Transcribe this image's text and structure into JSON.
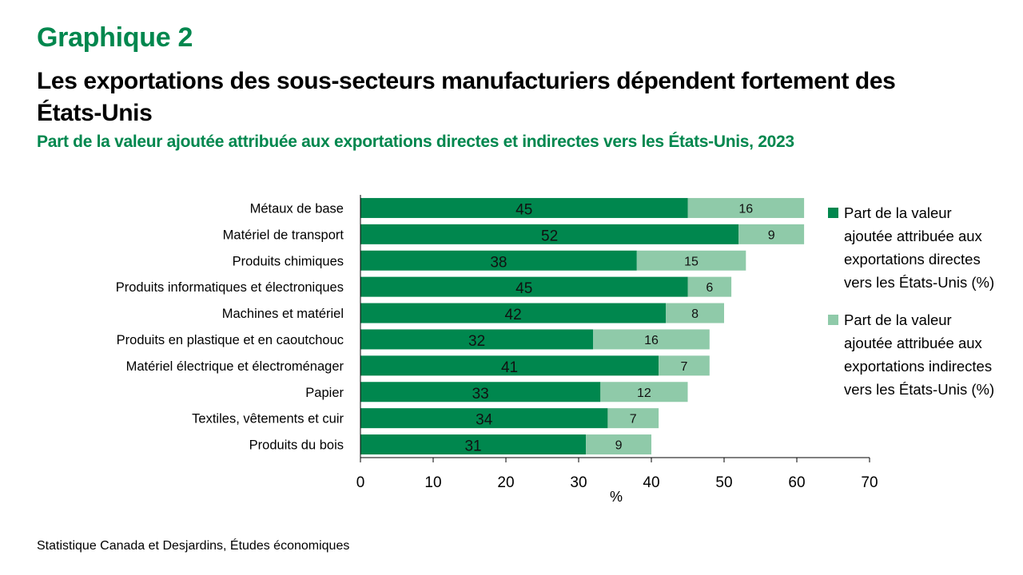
{
  "header": {
    "graph_label": "Graphique 2",
    "title": "Les exportations des sous-secteurs manufacturiers dépendent fortement des États-Unis",
    "subtitle": "Part de la valeur ajoutée attribuée aux exportations directes et indirectes vers les États-Unis, 2023"
  },
  "source": "Statistique Canada et Desjardins, Études économiques",
  "colors": {
    "direct": "#00874E",
    "indirect": "#8FCAA9",
    "title_accent": "#00874E"
  },
  "chart_data": {
    "type": "bar",
    "orientation": "horizontal",
    "stacked": true,
    "title": "Part de la valeur ajoutée attribuée aux exportations directes et indirectes vers les États-Unis, 2023",
    "xlabel": "%",
    "ylabel": "",
    "xlim": [
      0,
      70
    ],
    "xticks": [
      0,
      10,
      20,
      30,
      40,
      50,
      60,
      70
    ],
    "grid": false,
    "legend_position": "right",
    "categories": [
      "Métaux de base",
      "Matériel de transport",
      "Produits chimiques",
      "Produits informatiques et électroniques",
      "Machines et matériel",
      "Produits en plastique et en caoutchouc",
      "Matériel électrique et électroménager",
      "Papier",
      "Textiles, vêtements et cuir",
      "Produits du bois"
    ],
    "series": [
      {
        "name": "Part de la valeur ajoutée attribuée aux exportations directes vers les États-Unis (%)",
        "values": [
          45,
          52,
          38,
          45,
          42,
          32,
          41,
          33,
          34,
          31
        ]
      },
      {
        "name": "Part de la valeur ajoutée attribuée aux exportations indirectes vers les États-Unis (%)",
        "values": [
          16,
          9,
          15,
          6,
          8,
          16,
          7,
          12,
          7,
          9
        ]
      }
    ]
  }
}
